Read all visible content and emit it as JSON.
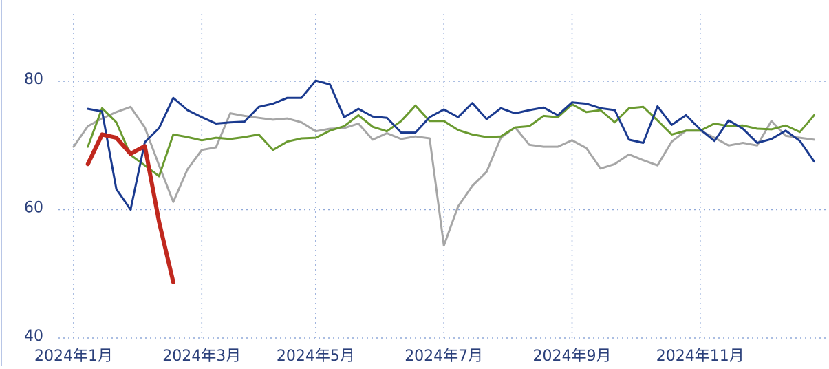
{
  "chart_data": {
    "type": "line",
    "categories": [
      "2024年1月",
      null,
      null,
      null,
      null,
      null,
      null,
      null,
      null,
      "2024年3月",
      null,
      null,
      null,
      null,
      null,
      null,
      null,
      "2024年5月",
      null,
      null,
      null,
      null,
      null,
      null,
      null,
      null,
      "2024年7月",
      null,
      null,
      null,
      null,
      null,
      null,
      null,
      null,
      "2024年9月",
      null,
      null,
      null,
      null,
      null,
      null,
      null,
      null,
      "2024年11月",
      null,
      null,
      null,
      null,
      null,
      null,
      null,
      null
    ],
    "series": [
      {
        "name": "gray",
        "color": "#a6a6a6",
        "width": 3,
        "values": [
          69.8,
          73.0,
          74.2,
          75.2,
          76.0,
          72.8,
          66.9,
          61.2,
          66.3,
          69.3,
          69.7,
          75.0,
          74.6,
          74.3,
          74.0,
          74.2,
          73.6,
          72.2,
          72.6,
          72.7,
          73.4,
          70.9,
          71.9,
          71.0,
          71.4,
          71.1,
          54.4,
          60.5,
          63.7,
          65.9,
          71.2,
          72.8,
          70.1,
          69.8,
          69.8,
          70.8,
          69.6,
          66.4,
          67.1,
          68.6,
          67.7,
          66.9,
          70.6,
          72.3,
          72.3,
          71.2,
          70.0,
          70.4,
          70.0,
          73.8,
          71.5,
          71.2,
          70.9
        ]
      },
      {
        "name": "green",
        "color": "#6a9a30",
        "width": 3,
        "values": [
          null,
          69.8,
          75.8,
          73.6,
          68.5,
          66.9,
          65.2,
          71.7,
          71.3,
          70.8,
          71.2,
          71.0,
          71.3,
          71.7,
          69.3,
          70.6,
          71.1,
          71.2,
          72.3,
          73.0,
          74.7,
          72.9,
          72.2,
          73.8,
          76.2,
          73.8,
          73.8,
          72.4,
          71.7,
          71.3,
          71.4,
          72.8,
          73.0,
          74.6,
          74.4,
          76.4,
          75.2,
          75.5,
          73.6,
          75.8,
          76.0,
          73.9,
          71.7,
          72.3,
          72.3,
          73.4,
          73.0,
          73.1,
          72.6,
          72.5,
          73.1,
          72.1,
          74.7
        ]
      },
      {
        "name": "blue",
        "color": "#1a3a8f",
        "width": 3,
        "values": [
          null,
          75.7,
          75.3,
          63.2,
          60.0,
          70.5,
          72.7,
          77.4,
          75.5,
          74.4,
          73.4,
          73.6,
          73.7,
          76.0,
          76.5,
          77.4,
          77.4,
          80.1,
          79.5,
          74.4,
          75.7,
          74.5,
          74.3,
          72.0,
          72.0,
          74.4,
          75.6,
          74.4,
          76.6,
          74.1,
          75.8,
          75.0,
          75.5,
          75.9,
          74.7,
          76.7,
          76.5,
          75.8,
          75.5,
          70.9,
          70.4,
          76.1,
          73.2,
          74.7,
          72.5,
          70.7,
          73.9,
          72.6,
          70.4,
          71.0,
          72.3,
          70.7,
          67.5
        ]
      },
      {
        "name": "red",
        "color": "#c0281e",
        "width": 6,
        "values": [
          null,
          67.1,
          71.7,
          71.2,
          68.7,
          69.9,
          58.1,
          48.7,
          null,
          null,
          null,
          null,
          null,
          null,
          null,
          null,
          null,
          null,
          null,
          null,
          null,
          null,
          null,
          null,
          null,
          null,
          null,
          null,
          null,
          null,
          null,
          null,
          null,
          null,
          null,
          null,
          null,
          null,
          null,
          null,
          null,
          null,
          null,
          null,
          null,
          null,
          null,
          null,
          null,
          null,
          null,
          null,
          null
        ]
      }
    ],
    "ylim": [
      40,
      90
    ],
    "yticks": [
      40,
      60,
      80
    ],
    "grid": true
  }
}
